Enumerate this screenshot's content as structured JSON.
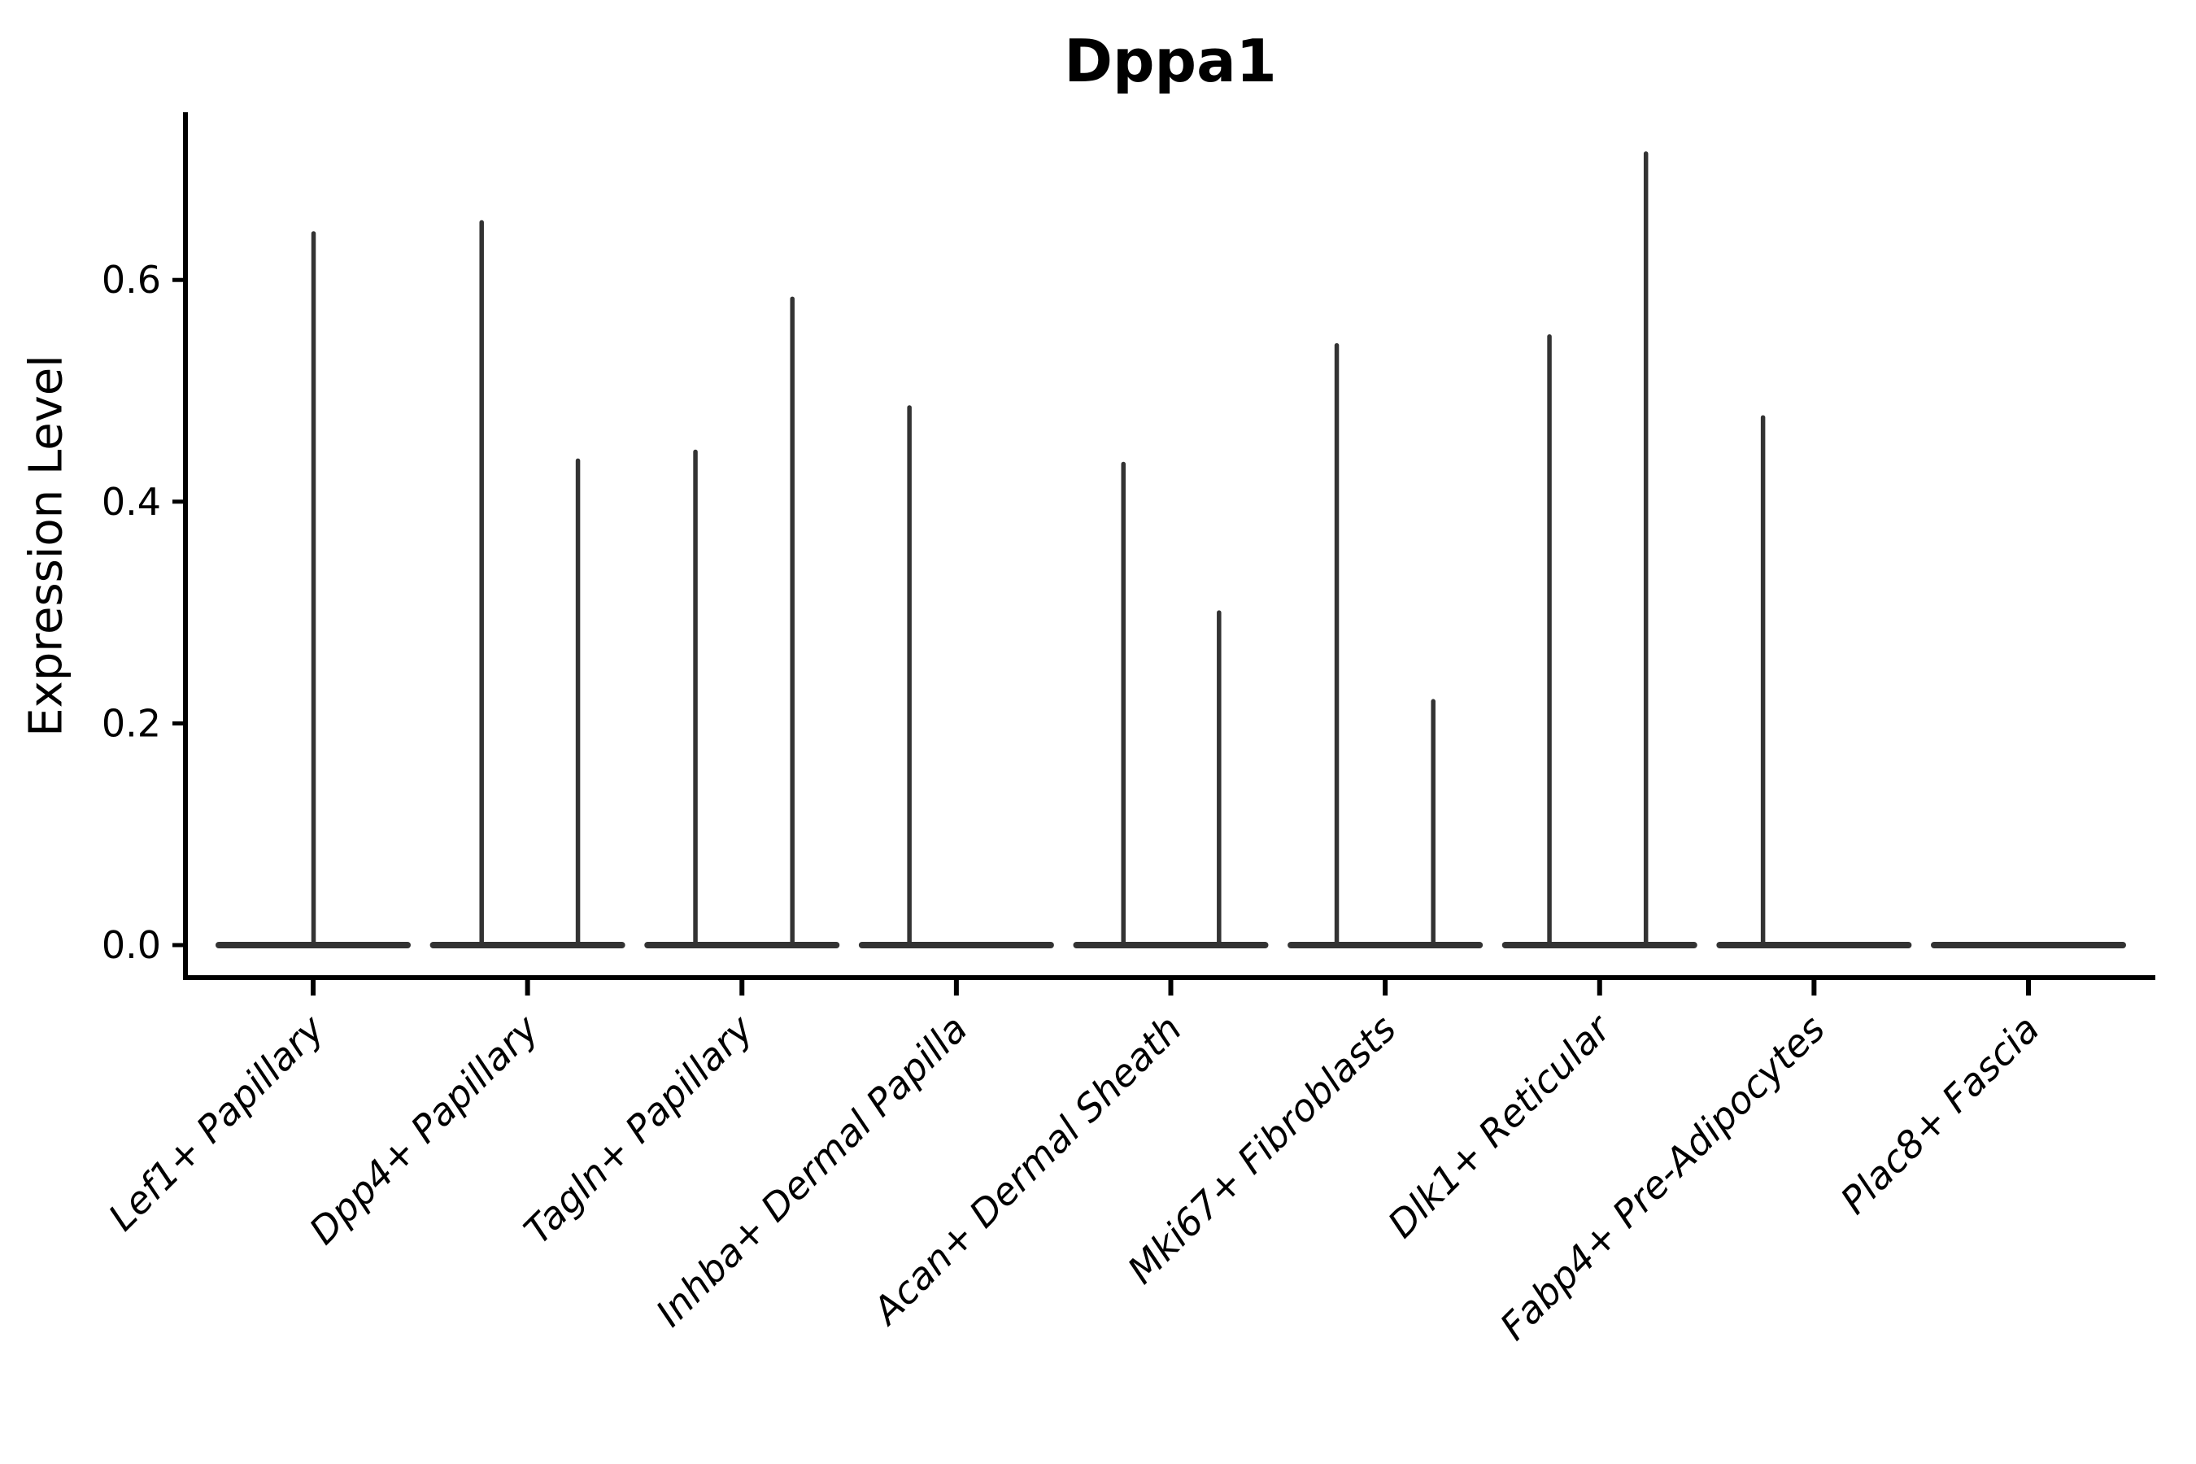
{
  "chart_data": {
    "type": "violin",
    "title": "Dppa1",
    "ylabel": "Expression Level",
    "xlabel": "",
    "grid": false,
    "legend": "none",
    "spines": [
      "left",
      "bottom"
    ],
    "x_label_rotation_deg": 45,
    "x_label_style": "italic",
    "ylim": [
      -0.029,
      0.75
    ],
    "ytick_values": [
      0.0,
      0.2,
      0.4,
      0.6
    ],
    "ytick_labels": [
      "0.0",
      "0.2",
      "0.4",
      "0.6"
    ],
    "categories": [
      "Lef1+ Papillary",
      "Dpp4+ Papillary",
      "Tagln+ Papillary",
      "Inhba+ Dermal Papilla",
      "Acan+ Dermal Sheath",
      "Mki67+ Fibroblasts",
      "Dlk1+ Reticular",
      "Fabp4+ Pre-Adipocytes",
      "Plac8+ Fascia"
    ],
    "baseline_value": 0.0,
    "violin_half_width_frac": 0.455,
    "violins": [
      {
        "category": "Lef1+ Papillary",
        "spikes": [
          {
            "dx_frac": 0.002,
            "value": 0.642
          }
        ]
      },
      {
        "category": "Dpp4+ Papillary",
        "spikes": [
          {
            "dx_frac": -0.214,
            "value": 0.652
          },
          {
            "dx_frac": 0.235,
            "value": 0.437
          }
        ]
      },
      {
        "category": "Tagln+ Papillary",
        "spikes": [
          {
            "dx_frac": -0.217,
            "value": 0.445
          },
          {
            "dx_frac": 0.235,
            "value": 0.583
          }
        ]
      },
      {
        "category": "Inhba+ Dermal Papilla",
        "spikes": [
          {
            "dx_frac": -0.219,
            "value": 0.485
          }
        ]
      },
      {
        "category": "Acan+ Dermal Sheath",
        "spikes": [
          {
            "dx_frac": -0.221,
            "value": 0.434
          },
          {
            "dx_frac": 0.225,
            "value": 0.3
          }
        ]
      },
      {
        "category": "Mki67+ Fibroblasts",
        "spikes": [
          {
            "dx_frac": -0.226,
            "value": 0.541
          },
          {
            "dx_frac": 0.224,
            "value": 0.22
          }
        ]
      },
      {
        "category": "Dlk1+ Reticular",
        "spikes": [
          {
            "dx_frac": -0.234,
            "value": 0.549
          },
          {
            "dx_frac": 0.216,
            "value": 0.714
          }
        ]
      },
      {
        "category": "Fabp4+ Pre-Adipocytes",
        "spikes": [
          {
            "dx_frac": -0.238,
            "value": 0.476
          }
        ]
      },
      {
        "category": "Plac8+ Fascia",
        "spikes": []
      }
    ],
    "colors": {
      "violin": "#333333",
      "axis": "#000000",
      "text": "#000000",
      "background": "#ffffff"
    }
  }
}
